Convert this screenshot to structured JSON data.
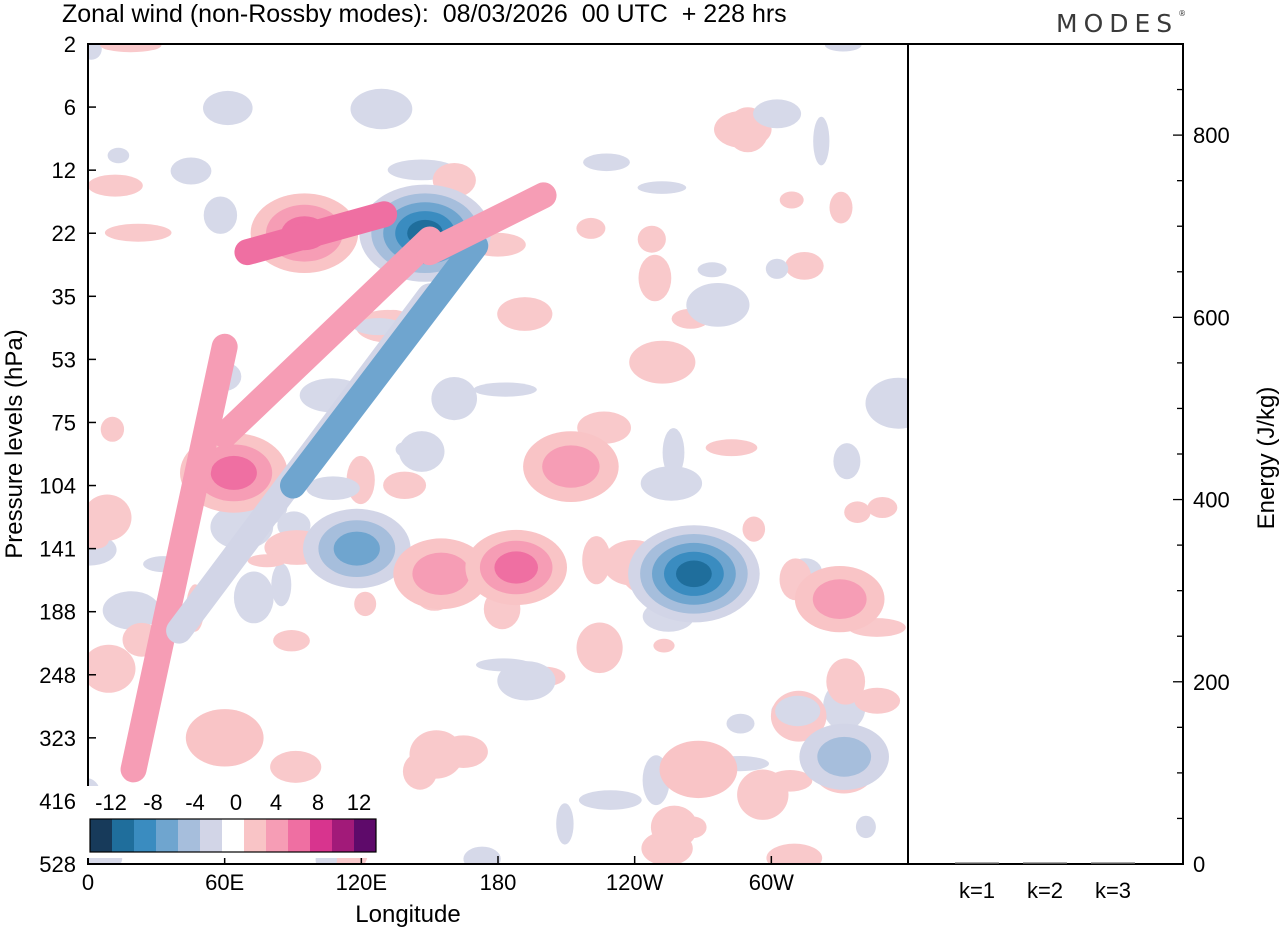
{
  "title": "Zonal wind (non-Rossby modes):  08/03/2026  00 UTC  + 228 hrs",
  "logo": "MODES",
  "logo_mark": "®",
  "chart_data": [
    {
      "type": "heatmap",
      "title": "Zonal wind (non-Rossby modes)",
      "xlabel": "Longitude",
      "ylabel": "Pressure levels (hPa)",
      "x_ticks": [
        "0",
        "60E",
        "120E",
        "180",
        "120W",
        "60W"
      ],
      "x_tick_values": [
        0,
        60,
        120,
        180,
        240,
        300
      ],
      "x_range": [
        0,
        360
      ],
      "y_ticks": [
        "2",
        "6",
        "12",
        "22",
        "35",
        "53",
        "75",
        "104",
        "141",
        "188",
        "248",
        "323",
        "416",
        "528"
      ],
      "colorbar": {
        "labels": [
          "-12",
          "-8",
          "-4",
          "0",
          "4",
          "8",
          "12"
        ],
        "levels": [
          -14,
          -12,
          -10,
          -8,
          -6,
          -4,
          -2,
          2,
          4,
          6,
          8,
          10,
          12,
          14
        ],
        "colors": [
          "#173a5a",
          "#1f6e9c",
          "#3a8cc0",
          "#6fa5cf",
          "#a6bedc",
          "#d2d5e7",
          "#ffffff",
          "#f9c4c6",
          "#f69db5",
          "#ef6fa2",
          "#d8348e",
          "#a21a79",
          "#5e0a6a"
        ]
      },
      "features": [
        {
          "lon": 148,
          "level_index": 3.0,
          "value": -12,
          "note": "band minimum near 22 hPa"
        },
        {
          "lon": 95,
          "level_index": 3.0,
          "value": 8,
          "note": "stratospheric positive band"
        },
        {
          "lon": 64,
          "level_index": 6.8,
          "value": 8
        },
        {
          "lon": 118,
          "level_index": 8.0,
          "value": -8
        },
        {
          "lon": 155,
          "level_index": 8.4,
          "value": 6
        },
        {
          "lon": 188,
          "level_index": 8.3,
          "value": 7
        },
        {
          "lon": 212,
          "level_index": 6.7,
          "value": 6
        },
        {
          "lon": 266,
          "level_index": 8.4,
          "value": -12
        },
        {
          "lon": 330,
          "level_index": 8.8,
          "value": 5
        },
        {
          "lon": 60,
          "level_index": 11.0,
          "value": 3
        },
        {
          "lon": 268,
          "level_index": 11.5,
          "value": 3
        },
        {
          "lon": 332,
          "level_index": 11.3,
          "value": -5
        }
      ]
    },
    {
      "type": "bar",
      "ylabel": "Energy (J/kg)",
      "categories": [
        "k=1",
        "k=2",
        "k=3"
      ],
      "values": [
        1,
        1.5,
        0.5
      ],
      "ylim": [
        0,
        900
      ],
      "y_ticks": [
        "0",
        "200",
        "400",
        "600",
        "800"
      ],
      "y_tick_values": [
        0,
        200,
        400,
        600,
        800
      ]
    }
  ]
}
